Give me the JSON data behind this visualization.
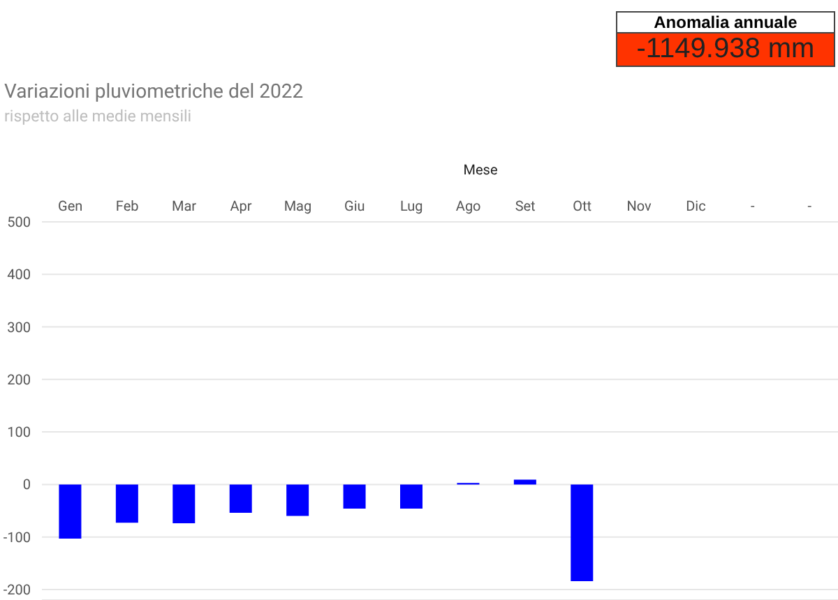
{
  "chart_data": {
    "type": "bar",
    "title": "Variazioni pluviometriche del 2022",
    "subtitle": "rispetto alle medie mensili",
    "xlabel": "Mese",
    "annotations": [
      "Anomalia annuale",
      "-1149.938 mm"
    ],
    "categories": [
      "Gen",
      "Feb",
      "Mar",
      "Apr",
      "Mag",
      "Giu",
      "Lug",
      "Ago",
      "Set",
      "Ott",
      "Nov",
      "Dic",
      "-",
      "-"
    ],
    "values": [
      -103,
      -73,
      -74,
      -54,
      -60,
      -46,
      -46,
      3,
      9,
      -184,
      null,
      null,
      null,
      null
    ],
    "color": "#0000ff",
    "ylim": [
      -220,
      500
    ],
    "yticks": [
      -200,
      -100,
      0,
      100,
      200,
      300,
      400,
      500
    ],
    "grid": "y"
  }
}
